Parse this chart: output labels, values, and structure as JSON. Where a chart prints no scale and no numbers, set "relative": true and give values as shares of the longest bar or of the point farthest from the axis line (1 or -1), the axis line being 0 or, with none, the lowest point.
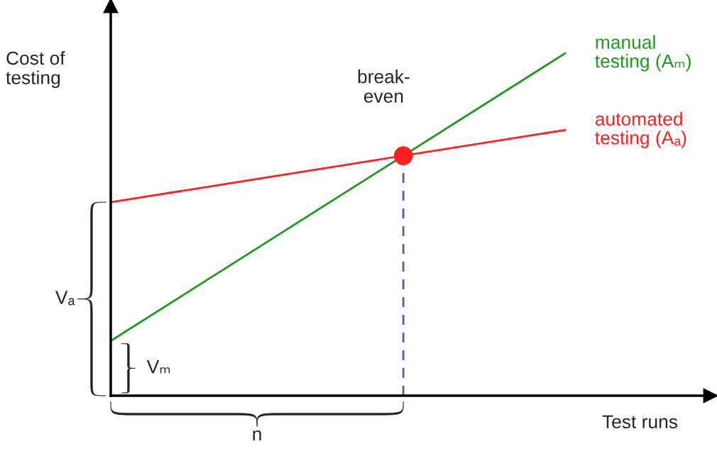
{
  "chart_data": {
    "type": "line",
    "relative": true,
    "xlabel": "Test runs",
    "ylabel": "Cost of\ntesting",
    "legend": false,
    "marker": "none",
    "categories": [
      null,
      null
    ],
    "series": [
      {
        "name": "manual\ntesting (Aₘ)",
        "color": "#1e9a1e",
        "values": [
          0.16,
          1.0
        ]
      },
      {
        "name": "automated\ntesting (Aₐ)",
        "color": "#ff1f1f",
        "values": [
          0.565,
          0.776
        ]
      }
    ],
    "annotations": [
      "break-\neven",
      "Vₐ",
      "Vₘ",
      "n"
    ]
  }
}
